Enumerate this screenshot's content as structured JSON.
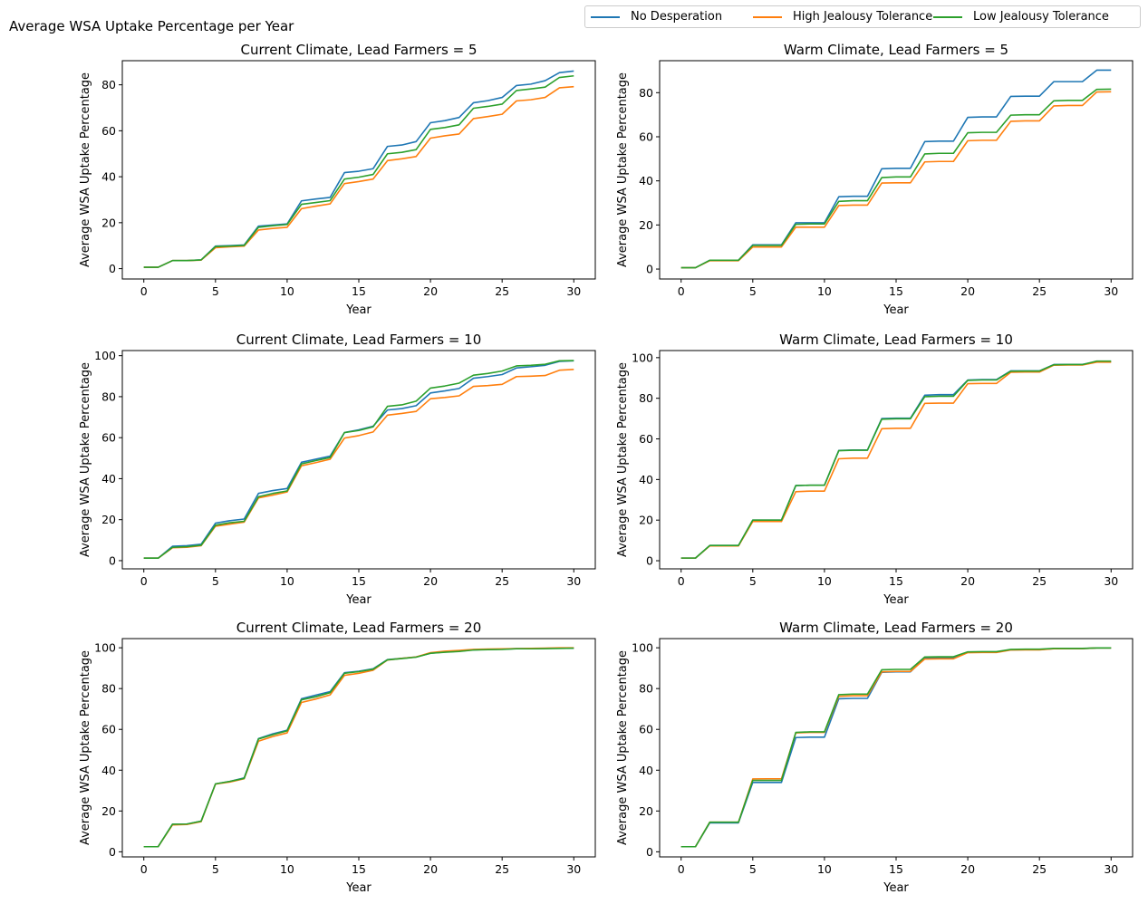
{
  "figure_title": "Average WSA Uptake Percentage per Year",
  "legend": [
    {
      "label": "No Desperation",
      "color": "#1f77b4"
    },
    {
      "label": "High Jealousy Tolerance",
      "color": "#ff7f0e"
    },
    {
      "label": "Low Jealousy Tolerance",
      "color": "#2ca02c"
    }
  ],
  "chart_data": [
    {
      "type": "line",
      "title": "Current Climate, Lead Farmers = 5",
      "xlabel": "Year",
      "ylabel": "Average WSA Uptake Percentage",
      "xlim": [
        -1.5,
        31.5
      ],
      "ylim": [
        -4.5,
        90.5
      ],
      "xticks": [
        0,
        5,
        10,
        15,
        20,
        25,
        30
      ],
      "yticks": [
        0,
        20,
        40,
        60,
        80
      ],
      "grid": false,
      "x": [
        0,
        1,
        2,
        3,
        4,
        5,
        6,
        7,
        8,
        9,
        10,
        11,
        12,
        13,
        14,
        15,
        16,
        17,
        18,
        19,
        20,
        21,
        22,
        23,
        24,
        25,
        26,
        27,
        28,
        29,
        30
      ],
      "series": [
        {
          "name": "No Desperation",
          "values": [
            0.6,
            0.6,
            3.5,
            3.5,
            3.8,
            9.8,
            10.0,
            10.3,
            18.5,
            19.0,
            19.5,
            29.5,
            30.3,
            31.0,
            41.8,
            42.4,
            43.5,
            53.2,
            53.8,
            55.3,
            63.5,
            64.4,
            65.8,
            72.2,
            73.1,
            74.5,
            79.7,
            80.3,
            81.8,
            85.3,
            86.0
          ]
        },
        {
          "name": "High Jealousy Tolerance",
          "values": [
            0.6,
            0.6,
            3.5,
            3.5,
            3.7,
            9.1,
            9.5,
            9.8,
            16.8,
            17.5,
            18.0,
            26.1,
            27.2,
            28.2,
            37.0,
            37.9,
            39.0,
            47.0,
            47.8,
            48.8,
            56.8,
            57.8,
            58.6,
            65.3,
            66.2,
            67.2,
            73.0,
            73.5,
            74.5,
            78.7,
            79.2
          ]
        },
        {
          "name": "Low Jealousy Tolerance",
          "values": [
            0.6,
            0.6,
            3.5,
            3.5,
            3.8,
            9.6,
            9.8,
            10.1,
            18.0,
            18.7,
            19.2,
            28.0,
            28.8,
            29.6,
            39.0,
            39.8,
            41.0,
            50.0,
            50.6,
            51.8,
            60.6,
            61.4,
            62.6,
            69.8,
            70.6,
            71.6,
            77.5,
            78.2,
            79.0,
            83.2,
            83.9
          ]
        }
      ]
    },
    {
      "type": "line",
      "title": "Warm Climate, Lead Farmers = 5",
      "xlabel": "Year",
      "ylabel": "Average WSA Uptake Percentage",
      "xlim": [
        -1.5,
        31.5
      ],
      "ylim": [
        -4.5,
        94.5
      ],
      "xticks": [
        0,
        5,
        10,
        15,
        20,
        25,
        30
      ],
      "yticks": [
        0,
        20,
        40,
        60,
        80
      ],
      "grid": false,
      "x": [
        0,
        1,
        2,
        3,
        4,
        5,
        6,
        7,
        8,
        9,
        10,
        11,
        12,
        13,
        14,
        15,
        16,
        17,
        18,
        19,
        20,
        21,
        22,
        23,
        24,
        25,
        26,
        27,
        28,
        29,
        30
      ],
      "series": [
        {
          "name": "No Desperation",
          "values": [
            0.6,
            0.6,
            4.0,
            4.0,
            4.0,
            11.0,
            11.0,
            11.0,
            21.0,
            21.0,
            21.0,
            32.8,
            33.0,
            33.0,
            45.5,
            45.7,
            45.7,
            57.8,
            58.0,
            58.0,
            68.8,
            69.0,
            69.0,
            78.3,
            78.4,
            78.4,
            85.0,
            85.0,
            85.0,
            90.2,
            90.2
          ]
        },
        {
          "name": "High Jealousy Tolerance",
          "values": [
            0.6,
            0.6,
            3.8,
            3.8,
            3.8,
            10.0,
            10.0,
            10.0,
            19.0,
            19.0,
            19.0,
            28.8,
            29.0,
            29.0,
            39.0,
            39.1,
            39.1,
            48.6,
            48.8,
            48.8,
            58.2,
            58.4,
            58.4,
            67.0,
            67.2,
            67.2,
            74.0,
            74.2,
            74.2,
            80.3,
            80.4
          ]
        },
        {
          "name": "Low Jealousy Tolerance",
          "values": [
            0.6,
            0.6,
            4.0,
            4.0,
            4.0,
            10.7,
            10.7,
            10.7,
            20.3,
            20.5,
            20.5,
            30.7,
            31.0,
            31.0,
            41.5,
            41.8,
            41.8,
            52.2,
            52.5,
            52.5,
            61.8,
            62.0,
            62.0,
            69.8,
            70.0,
            70.0,
            76.3,
            76.5,
            76.5,
            81.5,
            81.6
          ]
        }
      ]
    },
    {
      "type": "line",
      "title": "Current Climate, Lead Farmers = 10",
      "xlabel": "Year",
      "ylabel": "Average WSA Uptake Percentage",
      "xlim": [
        -1.5,
        31.5
      ],
      "ylim": [
        -4.0,
        102.5
      ],
      "xticks": [
        0,
        5,
        10,
        15,
        20,
        25,
        30
      ],
      "yticks": [
        0,
        20,
        40,
        60,
        80,
        100
      ],
      "grid": false,
      "x": [
        0,
        1,
        2,
        3,
        4,
        5,
        6,
        7,
        8,
        9,
        10,
        11,
        12,
        13,
        14,
        15,
        16,
        17,
        18,
        19,
        20,
        21,
        22,
        23,
        24,
        25,
        26,
        27,
        28,
        29,
        30
      ],
      "series": [
        {
          "name": "No Desperation",
          "values": [
            1.2,
            1.2,
            7.0,
            7.3,
            8.0,
            18.3,
            19.5,
            20.3,
            32.8,
            34.2,
            35.2,
            48.0,
            49.5,
            51.0,
            62.5,
            63.8,
            65.6,
            73.5,
            74.2,
            75.6,
            81.8,
            82.8,
            84.0,
            89.0,
            89.8,
            90.8,
            94.0,
            94.6,
            95.3,
            97.2,
            97.5
          ]
        },
        {
          "name": "High Jealousy Tolerance",
          "values": [
            1.2,
            1.2,
            6.3,
            6.5,
            7.3,
            16.8,
            17.8,
            18.8,
            30.6,
            32.0,
            33.5,
            46.3,
            47.8,
            49.5,
            59.8,
            61.0,
            62.8,
            71.0,
            71.8,
            72.8,
            79.0,
            79.6,
            80.4,
            85.0,
            85.4,
            86.0,
            89.8,
            90.0,
            90.3,
            92.9,
            93.3
          ]
        },
        {
          "name": "Low Jealousy Tolerance",
          "values": [
            1.2,
            1.2,
            6.5,
            6.8,
            7.5,
            17.3,
            18.5,
            19.2,
            31.2,
            32.8,
            34.0,
            47.2,
            48.8,
            50.3,
            62.5,
            63.5,
            65.3,
            75.3,
            76.0,
            77.8,
            84.2,
            85.2,
            86.6,
            90.5,
            91.3,
            92.5,
            95.0,
            95.3,
            95.8,
            97.5,
            97.6
          ]
        }
      ]
    },
    {
      "type": "line",
      "title": "Warm Climate, Lead Farmers = 10",
      "xlabel": "Year",
      "ylabel": "Average WSA Uptake Percentage",
      "xlim": [
        -1.5,
        31.5
      ],
      "ylim": [
        -4.0,
        103.5
      ],
      "xticks": [
        0,
        5,
        10,
        15,
        20,
        25,
        30
      ],
      "yticks": [
        0,
        20,
        40,
        60,
        80,
        100
      ],
      "grid": false,
      "x": [
        0,
        1,
        2,
        3,
        4,
        5,
        6,
        7,
        8,
        9,
        10,
        11,
        12,
        13,
        14,
        15,
        16,
        17,
        18,
        19,
        20,
        21,
        22,
        23,
        24,
        25,
        26,
        27,
        28,
        29,
        30
      ],
      "series": [
        {
          "name": "No Desperation",
          "values": [
            1.3,
            1.3,
            7.5,
            7.5,
            7.5,
            20.0,
            20.0,
            20.0,
            37.0,
            37.2,
            37.2,
            54.3,
            54.5,
            54.5,
            70.0,
            70.2,
            70.2,
            81.5,
            81.8,
            81.8,
            89.0,
            89.2,
            89.2,
            93.5,
            93.5,
            93.5,
            96.6,
            96.7,
            96.7,
            98.0,
            98.0
          ]
        },
        {
          "name": "High Jealousy Tolerance",
          "values": [
            1.3,
            1.3,
            7.3,
            7.3,
            7.3,
            19.3,
            19.3,
            19.3,
            34.0,
            34.3,
            34.3,
            50.2,
            50.5,
            50.5,
            65.0,
            65.2,
            65.2,
            77.5,
            77.6,
            77.6,
            87.2,
            87.3,
            87.3,
            92.8,
            92.9,
            92.9,
            96.3,
            96.4,
            96.4,
            97.8,
            97.8
          ]
        },
        {
          "name": "Low Jealousy Tolerance",
          "values": [
            1.3,
            1.3,
            7.5,
            7.5,
            7.5,
            20.0,
            20.0,
            20.0,
            37.0,
            37.2,
            37.2,
            54.2,
            54.4,
            54.4,
            69.7,
            69.9,
            69.9,
            80.8,
            81.0,
            81.0,
            88.8,
            89.0,
            89.0,
            93.3,
            93.4,
            93.4,
            96.5,
            96.6,
            96.6,
            98.3,
            98.3
          ]
        }
      ]
    },
    {
      "type": "line",
      "title": "Current Climate, Lead Farmers = 20",
      "xlabel": "Year",
      "ylabel": "Average WSA Uptake Percentage",
      "xlim": [
        -1.5,
        31.5
      ],
      "ylim": [
        -2.5,
        104.5
      ],
      "xticks": [
        0,
        5,
        10,
        15,
        20,
        25,
        30
      ],
      "yticks": [
        0,
        20,
        40,
        60,
        80,
        100
      ],
      "grid": false,
      "x": [
        0,
        1,
        2,
        3,
        4,
        5,
        6,
        7,
        8,
        9,
        10,
        11,
        12,
        13,
        14,
        15,
        16,
        17,
        18,
        19,
        20,
        21,
        22,
        23,
        24,
        25,
        26,
        27,
        28,
        29,
        30
      ],
      "series": [
        {
          "name": "No Desperation",
          "values": [
            2.5,
            2.5,
            13.5,
            13.6,
            15.0,
            33.3,
            34.5,
            36.2,
            55.5,
            57.8,
            59.6,
            75.0,
            76.8,
            78.5,
            87.8,
            88.5,
            89.7,
            94.2,
            94.8,
            95.5,
            97.3,
            97.9,
            98.3,
            99.0,
            99.2,
            99.3,
            99.6,
            99.6,
            99.7,
            99.8,
            99.8
          ]
        },
        {
          "name": "High Jealousy Tolerance",
          "values": [
            2.5,
            2.5,
            13.2,
            13.4,
            14.8,
            33.2,
            34.2,
            35.8,
            54.2,
            56.5,
            58.3,
            73.2,
            74.9,
            76.9,
            86.5,
            87.5,
            89.0,
            94.0,
            94.8,
            95.5,
            97.6,
            98.3,
            98.7,
            99.2,
            99.4,
            99.5,
            99.6,
            99.7,
            99.8,
            100.0,
            100.0
          ]
        },
        {
          "name": "Low Jealousy Tolerance",
          "values": [
            2.5,
            2.5,
            13.5,
            13.6,
            15.0,
            33.3,
            34.5,
            36.0,
            55.3,
            57.4,
            59.3,
            74.5,
            76.0,
            78.0,
            87.5,
            88.3,
            89.5,
            94.1,
            94.7,
            95.4,
            97.3,
            97.8,
            98.2,
            98.9,
            99.1,
            99.2,
            99.5,
            99.5,
            99.6,
            99.7,
            99.8
          ]
        }
      ]
    },
    {
      "type": "line",
      "title": "Warm Climate, Lead Farmers = 20",
      "xlabel": "Year",
      "ylabel": "Average WSA Uptake Percentage",
      "xlim": [
        -1.5,
        31.5
      ],
      "ylim": [
        -2.5,
        104.5
      ],
      "xticks": [
        0,
        5,
        10,
        15,
        20,
        25,
        30
      ],
      "yticks": [
        0,
        20,
        40,
        60,
        80,
        100
      ],
      "grid": false,
      "x": [
        0,
        1,
        2,
        3,
        4,
        5,
        6,
        7,
        8,
        9,
        10,
        11,
        12,
        13,
        14,
        15,
        16,
        17,
        18,
        19,
        20,
        21,
        22,
        23,
        24,
        25,
        26,
        27,
        28,
        29,
        30
      ],
      "series": [
        {
          "name": "No Desperation",
          "values": [
            2.5,
            2.5,
            14.2,
            14.2,
            14.2,
            34.0,
            34.0,
            34.0,
            56.0,
            56.2,
            56.2,
            75.0,
            75.2,
            75.2,
            88.0,
            88.2,
            88.2,
            95.0,
            95.1,
            95.1,
            97.8,
            97.9,
            97.9,
            99.0,
            99.1,
            99.1,
            99.6,
            99.6,
            99.6,
            99.9,
            99.9
          ]
        },
        {
          "name": "High Jealousy Tolerance",
          "values": [
            2.5,
            2.5,
            14.5,
            14.5,
            14.5,
            35.7,
            35.8,
            35.8,
            58.3,
            58.5,
            58.5,
            76.2,
            76.5,
            76.5,
            88.2,
            88.4,
            88.4,
            94.5,
            94.6,
            94.6,
            97.6,
            97.7,
            97.7,
            98.9,
            99.0,
            99.0,
            99.5,
            99.6,
            99.6,
            99.9,
            99.9
          ]
        },
        {
          "name": "Low Jealousy Tolerance",
          "values": [
            2.5,
            2.5,
            14.5,
            14.5,
            14.5,
            35.0,
            35.0,
            35.0,
            58.5,
            58.8,
            58.8,
            77.0,
            77.3,
            77.3,
            89.2,
            89.4,
            89.4,
            95.5,
            95.6,
            95.6,
            98.0,
            98.1,
            98.1,
            99.2,
            99.3,
            99.3,
            99.7,
            99.7,
            99.7,
            99.9,
            99.9
          ]
        }
      ]
    }
  ]
}
